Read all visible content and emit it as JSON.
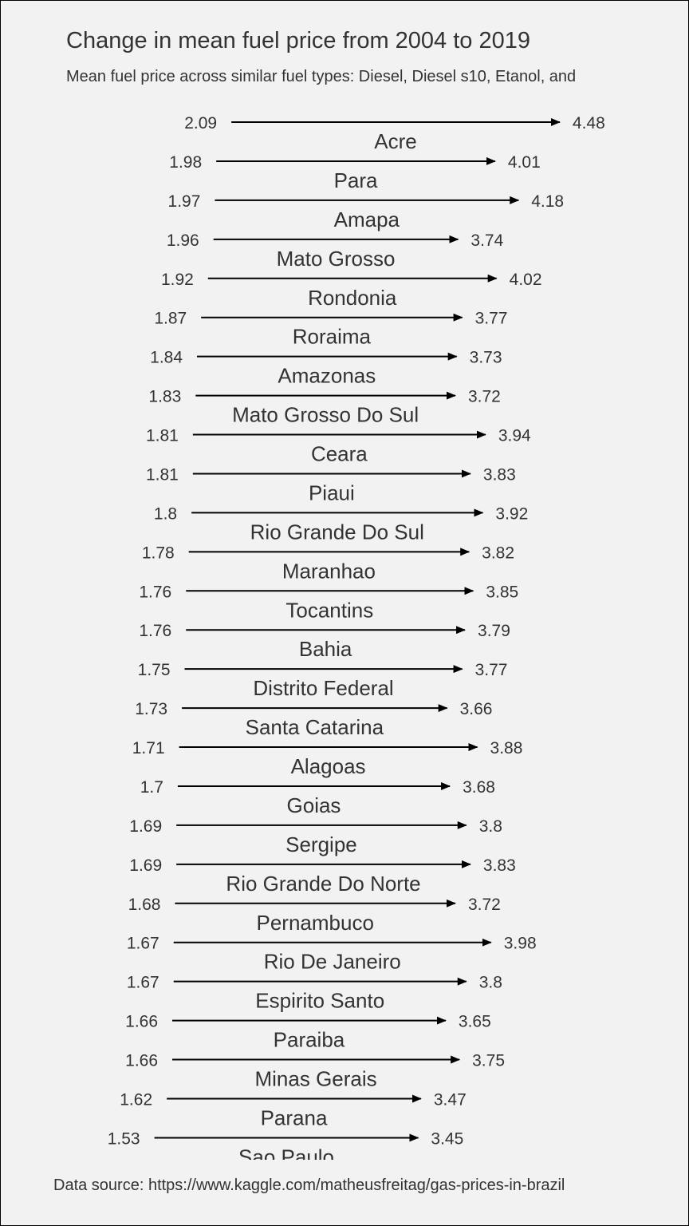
{
  "title": "Change in mean fuel price from 2004 to 2019",
  "subtitle": "Mean fuel price across similar fuel types: Diesel, Diesel s10, Etanol, and",
  "caption": "Data source: https://www.kaggle.com/matheusfreitag/gas-prices-in-brazil",
  "chart_data": {
    "type": "arrow",
    "title": "Change in mean fuel price from 2004 to 2019",
    "subtitle": "Mean fuel price across similar fuel types: Diesel, Diesel s10, Etanol, and",
    "xlabel": "",
    "ylabel": "",
    "x_start_label": "2004",
    "x_end_label": "2019",
    "grid": false,
    "legend": "none",
    "rows": [
      {
        "state": "Acre",
        "start": 2.09,
        "end": 4.48
      },
      {
        "state": "Para",
        "start": 1.98,
        "end": 4.01
      },
      {
        "state": "Amapa",
        "start": 1.97,
        "end": 4.18
      },
      {
        "state": "Mato Grosso",
        "start": 1.96,
        "end": 3.74
      },
      {
        "state": "Rondonia",
        "start": 1.92,
        "end": 4.02
      },
      {
        "state": "Roraima",
        "start": 1.87,
        "end": 3.77
      },
      {
        "state": "Amazonas",
        "start": 1.84,
        "end": 3.73
      },
      {
        "state": "Mato Grosso Do Sul",
        "start": 1.83,
        "end": 3.72
      },
      {
        "state": "Ceara",
        "start": 1.81,
        "end": 3.94
      },
      {
        "state": "Piaui",
        "start": 1.81,
        "end": 3.83
      },
      {
        "state": "Rio Grande Do Sul",
        "start": 1.8,
        "end": 3.92
      },
      {
        "state": "Maranhao",
        "start": 1.78,
        "end": 3.82
      },
      {
        "state": "Tocantins",
        "start": 1.76,
        "end": 3.85
      },
      {
        "state": "Bahia",
        "start": 1.76,
        "end": 3.79
      },
      {
        "state": "Distrito Federal",
        "start": 1.75,
        "end": 3.77
      },
      {
        "state": "Santa Catarina",
        "start": 1.73,
        "end": 3.66
      },
      {
        "state": "Alagoas",
        "start": 1.71,
        "end": 3.88
      },
      {
        "state": "Goias",
        "start": 1.7,
        "end": 3.68
      },
      {
        "state": "Sergipe",
        "start": 1.69,
        "end": 3.8
      },
      {
        "state": "Rio Grande Do Norte",
        "start": 1.69,
        "end": 3.83
      },
      {
        "state": "Pernambuco",
        "start": 1.68,
        "end": 3.72
      },
      {
        "state": "Rio De Janeiro",
        "start": 1.67,
        "end": 3.98
      },
      {
        "state": "Espirito Santo",
        "start": 1.67,
        "end": 3.8
      },
      {
        "state": "Paraiba",
        "start": 1.66,
        "end": 3.65
      },
      {
        "state": "Minas Gerais",
        "start": 1.66,
        "end": 3.75
      },
      {
        "state": "Parana",
        "start": 1.62,
        "end": 3.47
      },
      {
        "state": "Sao Paulo",
        "start": 1.53,
        "end": 3.45
      }
    ]
  }
}
